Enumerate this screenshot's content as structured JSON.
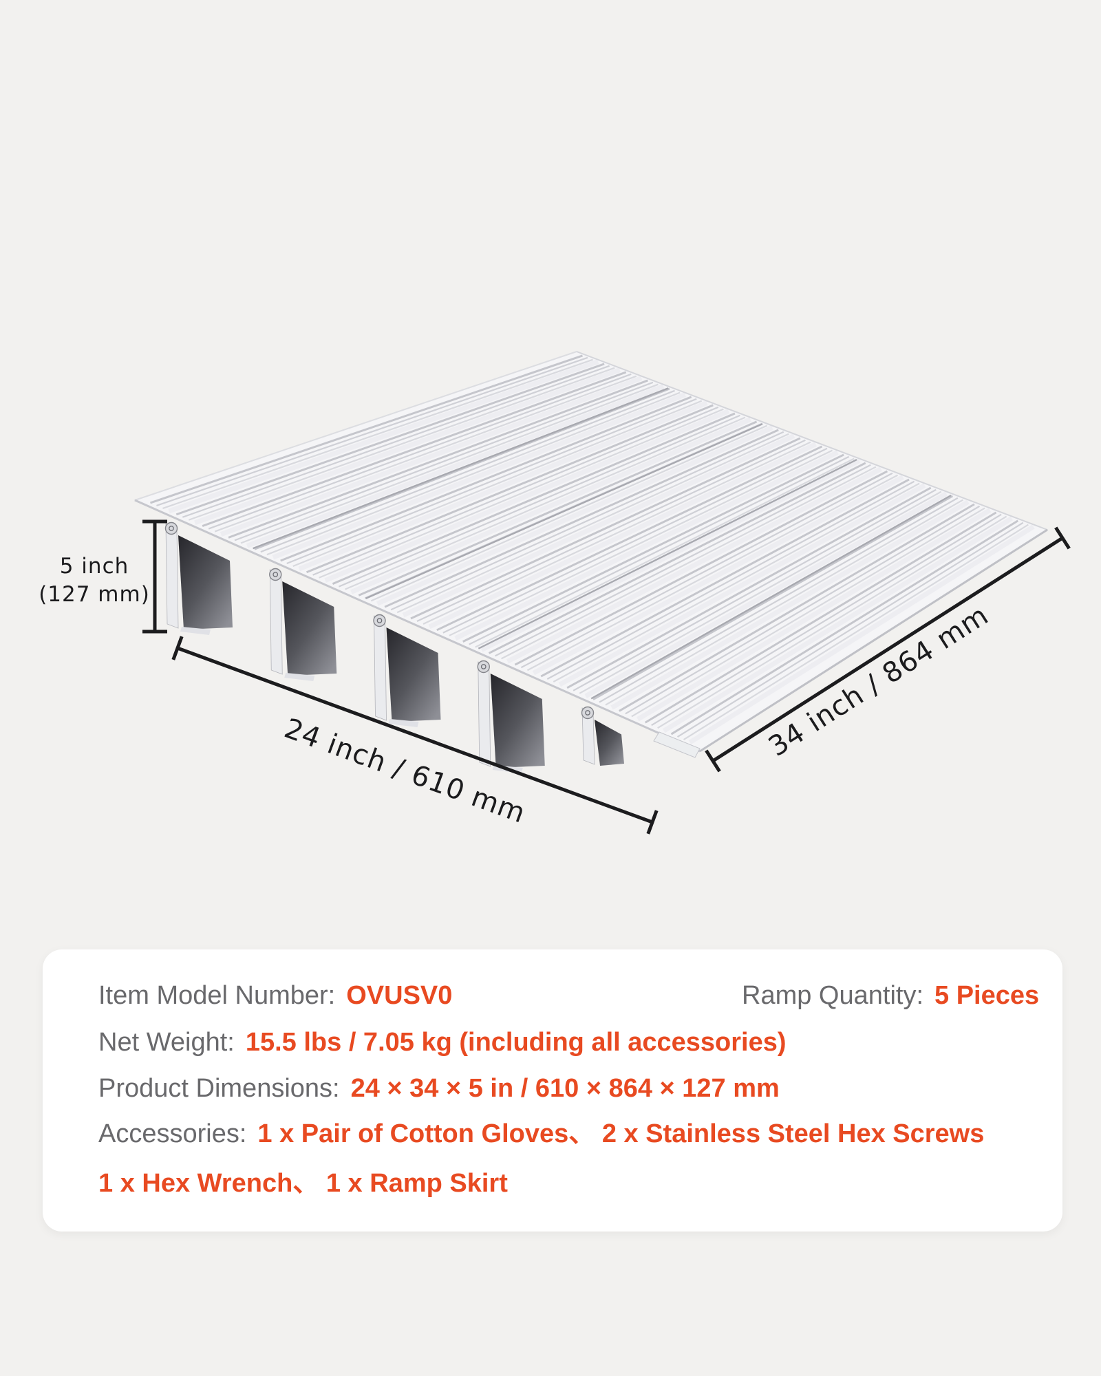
{
  "page": {
    "background_color": "#f2f1ef",
    "accent_color": "#e84a21",
    "label_color": "#69696c"
  },
  "diagram": {
    "height_label_line1": "5 inch",
    "height_label_line2": "(127 mm)",
    "depth_label": "24 inch / 610 mm",
    "width_label": "34 inch / 864 mm"
  },
  "spec_card": {
    "model": {
      "label": "Item Model Number:",
      "value": "OVUSV0"
    },
    "quantity": {
      "label": "Ramp Quantity:",
      "value": "5 Pieces"
    },
    "weight": {
      "label": "Net Weight:",
      "value": "15.5 lbs / 7.05 kg (including all accessories)"
    },
    "dimensions": {
      "label": "Product Dimensions:",
      "value": "24 × 34 × 5 in / 610 × 864 × 127 mm"
    },
    "accessories": {
      "label": "Accessories:",
      "value": "1 x Pair of Cotton Gloves、 2 x Stainless Steel Hex Screws"
    },
    "accessories_line2": {
      "value": "1 x Hex Wrench、 1 x Ramp Skirt"
    }
  }
}
